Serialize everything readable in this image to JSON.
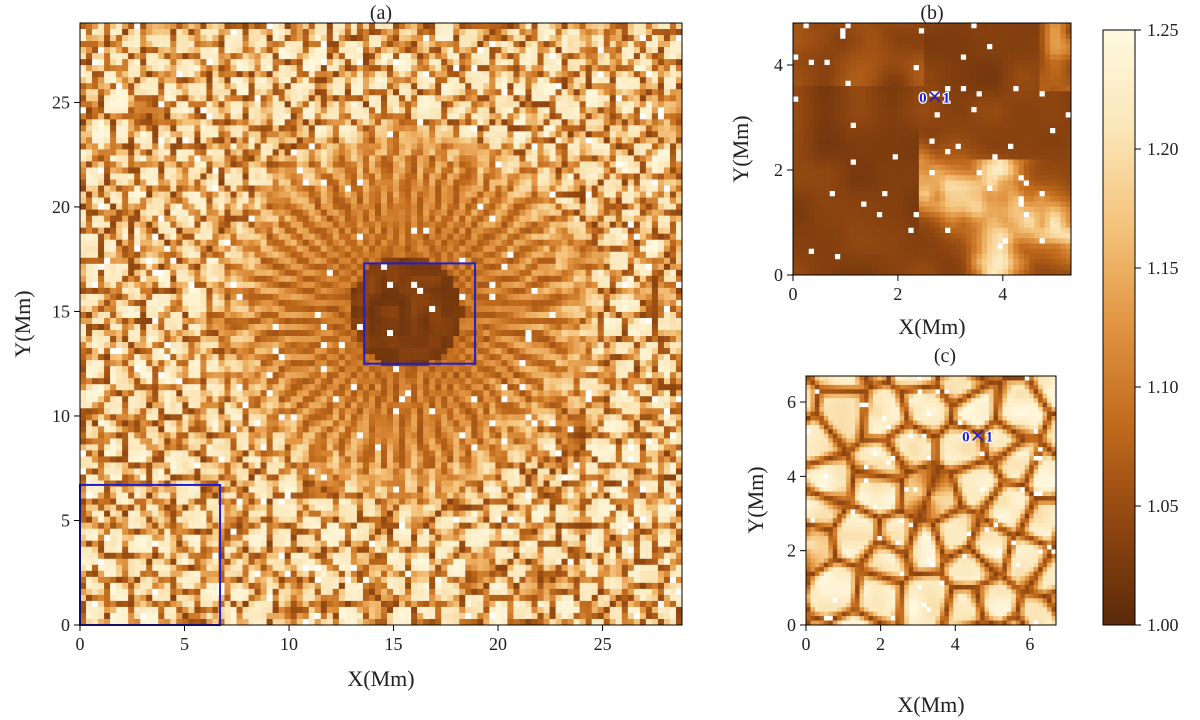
{
  "chart_data": [
    {
      "type": "heatmap",
      "panel": "(a)",
      "title": "(a)",
      "xlabel": "X(Mm)",
      "ylabel": "Y(Mm)",
      "xlim": [
        0,
        28.8
      ],
      "ylim": [
        0,
        28.8
      ],
      "xticks": [
        0,
        5,
        10,
        15,
        20,
        25
      ],
      "yticks": [
        0,
        5,
        10,
        15,
        20,
        25
      ],
      "image": "sunspot continuum intensity map: dark umbra and radial penumbral filaments near the centre, bright granulation with dark intergranular lanes elsewhere",
      "boxes": [
        {
          "x": [
            13.6,
            18.9
          ],
          "y": [
            12.5,
            17.3
          ],
          "color": "#1f1fd0"
        },
        {
          "x": [
            0,
            6.7
          ],
          "y": [
            0,
            6.7
          ],
          "color": "#1f1fd0"
        }
      ]
    },
    {
      "type": "heatmap",
      "panel": "(b)",
      "title": "(b)",
      "xlabel": "X(Mm)",
      "ylabel": "Y(Mm)",
      "xlim": [
        0,
        5.3
      ],
      "ylim": [
        0,
        4.8
      ],
      "xticks": [
        0,
        2,
        4
      ],
      "yticks": [
        0,
        2,
        4
      ],
      "image": "zoom of the umbra: mostly dark with bright umbral dots and a bright light-bridge structure in the lower right",
      "markers": [
        {
          "x": 2.7,
          "y": 3.4,
          "symbol": "x",
          "labels": [
            "0",
            "1"
          ],
          "color": "#1f1fd0"
        }
      ]
    },
    {
      "type": "heatmap",
      "panel": "(c)",
      "title": "(c)",
      "xlabel": "X(Mm)",
      "ylabel": "Y(Mm)",
      "xlim": [
        0,
        6.7
      ],
      "ylim": [
        0,
        6.7
      ],
      "xticks": [
        0,
        2,
        4,
        6
      ],
      "yticks": [
        0,
        2,
        4,
        6
      ],
      "image": "zoom of quiet-Sun granulation: bright granules separated by dark lanes",
      "markers": [
        {
          "x": 4.6,
          "y": 5.1,
          "symbol": "x",
          "labels": [
            "0",
            "1"
          ],
          "color": "#1f1fd0"
        }
      ]
    }
  ],
  "colorbar": {
    "min": 1.0,
    "max": 1.25,
    "ticks": [
      "1.00",
      "1.05",
      "1.10",
      "1.15",
      "1.20",
      "1.25"
    ],
    "colors": [
      "#5a2a0a",
      "#8e4510",
      "#c06a1c",
      "#e09340",
      "#f4c27a",
      "#fbe6b8",
      "#fff9e0"
    ]
  }
}
